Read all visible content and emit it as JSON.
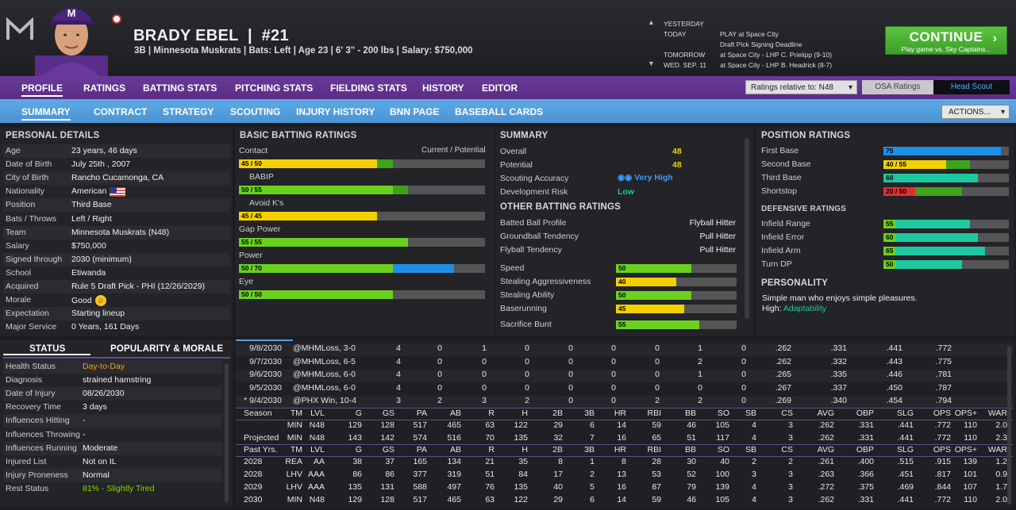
{
  "player": {
    "name": "BRADY EBEL",
    "number": "#21",
    "info": "3B | Minnesota Muskrats  |  Bats: Left  |  Age 23  |  6' 3\" - 200 lbs  |  Salary: $750,000"
  },
  "schedule": [
    {
      "day": "YESTERDAY",
      "event": ""
    },
    {
      "day": "TODAY",
      "event": "PLAY at Space City"
    },
    {
      "day": "",
      "event": "Draft Pick Signing Deadline"
    },
    {
      "day": "TOMORROW",
      "event": "at Space City - LHP C. Prielipp (9-10)"
    },
    {
      "day": "WED. SEP. 11",
      "event": "at Space City - LHP B. Headrick (8-7)"
    }
  ],
  "continue": {
    "label": "CONTINUE",
    "sub": "Play game vs. Sky Captains..."
  },
  "nav1": [
    "PROFILE",
    "RATINGS",
    "BATTING STATS",
    "PITCHING STATS",
    "FIELDING STATS",
    "HISTORY",
    "EDITOR"
  ],
  "ratings_select": "Ratings relative to: N48",
  "osa": "OSA Ratings",
  "head_scout": "Head Scout",
  "nav2": [
    "SUMMARY",
    "CONTRACT",
    "STRATEGY",
    "SCOUTING",
    "INJURY HISTORY",
    "BNN PAGE",
    "BASEBALL CARDS"
  ],
  "actions": "ACTIONS...",
  "personal": {
    "title": "PERSONAL DETAILS",
    "rows": [
      [
        "Age",
        "23 years, 46 days"
      ],
      [
        "Date of Birth",
        "July 25th , 2007"
      ],
      [
        "City of Birth",
        "Rancho Cucamonga, CA"
      ],
      [
        "Nationality",
        "American"
      ],
      [
        "Position",
        "Third Base"
      ],
      [
        "Bats / Throws",
        "Left / Right"
      ],
      [
        "Team",
        "Minnesota Muskrats (N48)"
      ],
      [
        "Salary",
        "$750,000"
      ],
      [
        "Signed through",
        "2030 (minimum)"
      ],
      [
        "School",
        "Etiwanda"
      ],
      [
        "Acquired",
        "Rule 5 Draft Pick - PHI (12/26/2029)"
      ],
      [
        "Morale",
        "Good"
      ],
      [
        "Expectation",
        "Starting lineup"
      ],
      [
        "Major Service",
        "0 Years, 161 Days"
      ]
    ]
  },
  "batting": {
    "title": "BASIC BATTING RATINGS",
    "legend": "Current / Potential",
    "rows": [
      {
        "name": "Contact",
        "label": "45 / 50",
        "cur": 45,
        "pot": 50,
        "color": "yel"
      },
      {
        "name": "BABIP",
        "label": "50 / 55",
        "cur": 50,
        "pot": 55,
        "color": "grn"
      },
      {
        "name": "Avoid K's",
        "label": "45 / 45",
        "cur": 45,
        "pot": 45,
        "color": "yel"
      },
      {
        "name": "Gap Power",
        "label": "55 / 55",
        "cur": 55,
        "pot": 55,
        "color": "grn"
      },
      {
        "name": "Power",
        "label": "50 / 70",
        "cur": 50,
        "pot": 70,
        "color": "grn"
      },
      {
        "name": "Eye",
        "label": "50 / 50",
        "cur": 50,
        "pot": 50,
        "color": "grn"
      }
    ]
  },
  "summary": {
    "title": "SUMMARY",
    "overall_label": "Overall",
    "overall": "48",
    "potential_label": "Potential",
    "potential": "48",
    "accuracy_label": "Scouting Accuracy",
    "accuracy": "Very High",
    "risk_label": "Development Risk",
    "risk": "Low"
  },
  "other": {
    "title": "OTHER BATTING RATINGS",
    "text": [
      [
        "Batted Ball Profile",
        "Flyball Hitter"
      ],
      [
        "Groundball Tendency",
        "Pull Hitter"
      ],
      [
        "Flyball Tendency",
        "Pull Hitter"
      ]
    ],
    "bars": [
      {
        "name": "Speed",
        "value": "50",
        "v": 50,
        "color": "grn"
      },
      {
        "name": "Stealing Aggressiveness",
        "value": "40",
        "v": 40,
        "color": "yel"
      },
      {
        "name": "Stealing Ability",
        "value": "50",
        "v": 50,
        "color": "grn"
      },
      {
        "name": "Baserunning",
        "value": "45",
        "v": 45,
        "color": "yel"
      },
      {
        "name": "Sacrifice Bunt",
        "value": "55",
        "v": 55,
        "color": "grn"
      }
    ]
  },
  "position": {
    "title": "POSITION RATINGS",
    "rows": [
      {
        "name": "First Base",
        "label": "75",
        "cur": 75,
        "pot": 75,
        "color": "blu"
      },
      {
        "name": "Second Base",
        "label": "40 / 55",
        "cur": 40,
        "pot": 55,
        "color": "yel"
      },
      {
        "name": "Third Base",
        "label": "60",
        "cur": 60,
        "pot": 60,
        "color": "teal"
      },
      {
        "name": "Shortstop",
        "label": "20 / 50",
        "cur": 20,
        "pot": 50,
        "color": "red"
      }
    ]
  },
  "defense": {
    "title": "DEFENSIVE RATINGS",
    "rows": [
      {
        "name": "Infield Range",
        "label": "55",
        "v": 55
      },
      {
        "name": "Infield Error",
        "label": "60",
        "v": 60
      },
      {
        "name": "Infield Arm",
        "label": "65",
        "v": 65
      },
      {
        "name": "Turn DP",
        "label": "50",
        "v": 50
      }
    ]
  },
  "personality": {
    "title": "PERSONALITY",
    "desc": "Simple man who enjoys simple pleasures.",
    "high_label": "High:",
    "high": "Adaptability"
  },
  "status": {
    "tab1": "STATUS",
    "tab2": "POPULARITY & MORALE",
    "rows": [
      [
        "Health Status",
        "Day-to-Day"
      ],
      [
        "Diagnosis",
        "strained hamstring"
      ],
      [
        "Date of Injury",
        "08/26/2030"
      ],
      [
        "Recovery Time",
        "3 days"
      ],
      [
        "Influences Hitting",
        "-"
      ],
      [
        "Influences Throwing",
        "-"
      ],
      [
        "Influences Running",
        "Moderate"
      ],
      [
        "Injured List",
        "Not on IL"
      ],
      [
        "Injury Proneness",
        "Normal"
      ],
      [
        "Rest Status",
        "81% - Slightly Tired"
      ]
    ]
  },
  "games": [
    [
      "9/8/2030",
      "@MHMLoss, 3-0",
      "4",
      "0",
      "1",
      "0",
      "0",
      "0",
      "0",
      "1",
      "0",
      ".262",
      ".331",
      ".441",
      ".772"
    ],
    [
      "9/7/2030",
      "@MHMLoss, 6-5",
      "4",
      "0",
      "0",
      "0",
      "0",
      "0",
      "0",
      "2",
      "0",
      ".262",
      ".332",
      ".443",
      ".775"
    ],
    [
      "9/6/2030",
      "@MHMLoss, 6-0",
      "4",
      "0",
      "0",
      "0",
      "0",
      "0",
      "0",
      "1",
      "0",
      ".265",
      ".335",
      ".446",
      ".781"
    ],
    [
      "9/5/2030",
      "@MHMLoss, 6-0",
      "4",
      "0",
      "0",
      "0",
      "0",
      "0",
      "0",
      "0",
      "0",
      ".267",
      ".337",
      ".450",
      ".787"
    ],
    [
      "* 9/4/2030",
      "@PHX Win, 10-4",
      "3",
      "2",
      "3",
      "2",
      "0",
      "0",
      "2",
      "2",
      "0",
      ".269",
      ".340",
      ".454",
      ".794"
    ]
  ],
  "season_header": [
    "Season",
    "TM",
    "LVL",
    "G",
    "GS",
    "PA",
    "AB",
    "R",
    "H",
    "2B",
    "3B",
    "HR",
    "RBI",
    "BB",
    "SO",
    "SB",
    "CS",
    "AVG",
    "OBP",
    "SLG",
    "OPS",
    "OPS+",
    "WAR"
  ],
  "season_rows": [
    [
      "",
      "MIN",
      "N48",
      "129",
      "128",
      "517",
      "465",
      "63",
      "122",
      "29",
      "6",
      "14",
      "59",
      "46",
      "105",
      "4",
      "3",
      ".262",
      ".331",
      ".441",
      ".772",
      "110",
      "2.0"
    ],
    [
      "Projected",
      "MIN",
      "N48",
      "143",
      "142",
      "574",
      "516",
      "70",
      "135",
      "32",
      "7",
      "16",
      "65",
      "51",
      "117",
      "4",
      "3",
      ".262",
      ".331",
      ".441",
      ".772",
      "110",
      "2.3"
    ]
  ],
  "past_header": [
    "Past Yrs.",
    "TM",
    "LVL",
    "G",
    "GS",
    "PA",
    "AB",
    "R",
    "H",
    "2B",
    "3B",
    "HR",
    "RBI",
    "BB",
    "SO",
    "SB",
    "CS",
    "AVG",
    "OBP",
    "SLG",
    "OPS",
    "OPS+",
    "WAR"
  ],
  "past_rows": [
    [
      "2028",
      "REA",
      "AA",
      "38",
      "37",
      "165",
      "134",
      "21",
      "35",
      "8",
      "1",
      "8",
      "28",
      "30",
      "40",
      "2",
      "2",
      ".261",
      ".400",
      ".515",
      ".915",
      "139",
      "1.2"
    ],
    [
      "2028",
      "LHV",
      "AAA",
      "86",
      "86",
      "377",
      "319",
      "51",
      "84",
      "17",
      "2",
      "13",
      "53",
      "52",
      "100",
      "3",
      "3",
      ".263",
      ".366",
      ".451",
      ".817",
      "101",
      "0.9"
    ],
    [
      "2029",
      "LHV",
      "AAA",
      "135",
      "131",
      "588",
      "497",
      "76",
      "135",
      "40",
      "5",
      "16",
      "87",
      "79",
      "139",
      "4",
      "3",
      ".272",
      ".375",
      ".469",
      ".844",
      "107",
      "1.7"
    ],
    [
      "2030",
      "MIN",
      "N48",
      "129",
      "128",
      "517",
      "465",
      "63",
      "122",
      "29",
      "6",
      "14",
      "59",
      "46",
      "105",
      "4",
      "3",
      ".262",
      ".331",
      ".441",
      ".772",
      "110",
      "2.0"
    ]
  ]
}
